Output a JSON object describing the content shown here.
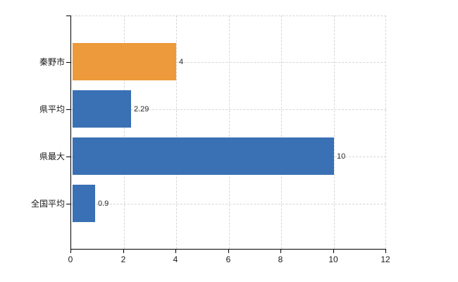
{
  "chart_data": {
    "type": "bar",
    "orientation": "horizontal",
    "title": "",
    "xlabel": "",
    "ylabel": "",
    "categories": [
      "秦野市",
      "県平均",
      "県最大",
      "全国平均"
    ],
    "values": [
      4,
      2.29,
      10,
      0.9
    ],
    "value_labels": [
      "4",
      "2.29",
      "10",
      "0.9"
    ],
    "bar_colors": [
      "#ec9a3c",
      "#3a70b4",
      "#3a70b4",
      "#3a70b4"
    ],
    "xlim": [
      0,
      12
    ],
    "x_tick_values": [
      0,
      2,
      4,
      6,
      8,
      10,
      12
    ],
    "x_tick_labels": [
      "0",
      "2",
      "4",
      "6",
      "8",
      "10",
      "12"
    ],
    "grid": "on",
    "legend": "none",
    "colors": {
      "orange_bar": "#ec9a3c",
      "blue_bar": "#3a70b4",
      "gridline": "#d6d6d6",
      "axis": "#000000",
      "tick_label": "#1a1a1a",
      "value_label": "#2b2b2b",
      "background": "#ffffff"
    }
  }
}
